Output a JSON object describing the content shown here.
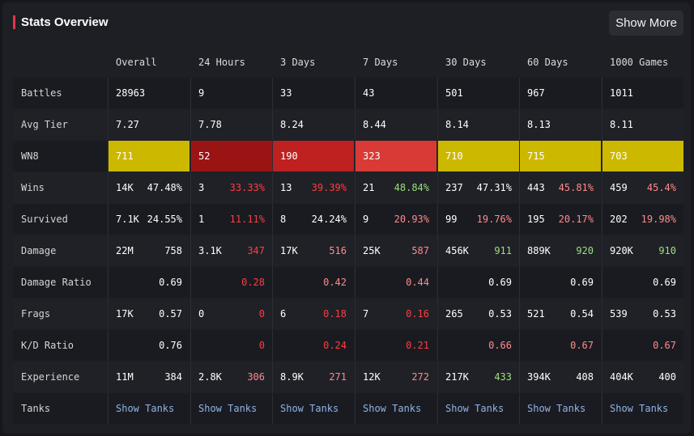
{
  "header": {
    "title": "Stats Overview",
    "button_label": "Show More"
  },
  "columns": [
    "Overall",
    "24 Hours",
    "3 Days",
    "7 Days",
    "30 Days",
    "60 Days",
    "1000 Games"
  ],
  "colors": {
    "accent": "#e0364a",
    "good": "#9be07a",
    "bad": "#ff3d3d",
    "mid_bad": "#ff8a8a",
    "neutral": "#ffffff",
    "wn8_yellow": "#cdb800",
    "wn8_dark_red": "#9a1414",
    "wn8_red": "#bf2020",
    "wn8_light_red": "#d93a36",
    "link": "#8fb4e6"
  },
  "rows": [
    {
      "label": "Battles",
      "cells": [
        {
          "a": "28963"
        },
        {
          "a": "9"
        },
        {
          "a": "33"
        },
        {
          "a": "43"
        },
        {
          "a": "501"
        },
        {
          "a": "967"
        },
        {
          "a": "1011"
        }
      ]
    },
    {
      "label": "Avg Tier",
      "cells": [
        {
          "a": "7.27"
        },
        {
          "a": "7.78"
        },
        {
          "a": "8.24"
        },
        {
          "a": "8.44"
        },
        {
          "a": "8.14"
        },
        {
          "a": "8.13"
        },
        {
          "a": "8.11"
        }
      ]
    },
    {
      "label": "WN8",
      "cells": [
        {
          "a": "711",
          "bg": "#cdb800"
        },
        {
          "a": "52",
          "bg": "#9a1414"
        },
        {
          "a": "190",
          "bg": "#bf2020"
        },
        {
          "a": "323",
          "bg": "#d93a36"
        },
        {
          "a": "710",
          "bg": "#cdb800"
        },
        {
          "a": "715",
          "bg": "#cdb800"
        },
        {
          "a": "703",
          "bg": "#cdb800"
        }
      ]
    },
    {
      "label": "Wins",
      "cells": [
        {
          "a": "14K",
          "b": "47.48%",
          "bc": "#ffffff"
        },
        {
          "a": "3",
          "b": "33.33%",
          "bc": "#ff3d3d"
        },
        {
          "a": "13",
          "b": "39.39%",
          "bc": "#ff3d3d"
        },
        {
          "a": "21",
          "b": "48.84%",
          "bc": "#9be07a"
        },
        {
          "a": "237",
          "b": "47.31%",
          "bc": "#ffffff"
        },
        {
          "a": "443",
          "b": "45.81%",
          "bc": "#ff8a8a"
        },
        {
          "a": "459",
          "b": "45.4%",
          "bc": "#ff8a8a"
        }
      ]
    },
    {
      "label": "Survived",
      "cells": [
        {
          "a": "7.1K",
          "b": "24.55%",
          "bc": "#ffffff"
        },
        {
          "a": "1",
          "b": "11.11%",
          "bc": "#ff3d3d"
        },
        {
          "a": "8",
          "b": "24.24%",
          "bc": "#ffffff"
        },
        {
          "a": "9",
          "b": "20.93%",
          "bc": "#ff8a8a"
        },
        {
          "a": "99",
          "b": "19.76%",
          "bc": "#ff8a8a"
        },
        {
          "a": "195",
          "b": "20.17%",
          "bc": "#ff8a8a"
        },
        {
          "a": "202",
          "b": "19.98%",
          "bc": "#ff8a8a"
        }
      ]
    },
    {
      "label": "Damage",
      "cells": [
        {
          "a": "22M",
          "b": "758",
          "bc": "#ffffff"
        },
        {
          "a": "3.1K",
          "b": "347",
          "bc": "#ff3d3d"
        },
        {
          "a": "17K",
          "b": "516",
          "bc": "#ff8a8a"
        },
        {
          "a": "25K",
          "b": "587",
          "bc": "#ff8a8a"
        },
        {
          "a": "456K",
          "b": "911",
          "bc": "#9be07a"
        },
        {
          "a": "889K",
          "b": "920",
          "bc": "#9be07a"
        },
        {
          "a": "920K",
          "b": "910",
          "bc": "#9be07a"
        }
      ]
    },
    {
      "label": "Damage Ratio",
      "cells": [
        {
          "b": "0.69",
          "bc": "#ffffff"
        },
        {
          "b": "0.28",
          "bc": "#ff3d3d"
        },
        {
          "b": "0.42",
          "bc": "#ff8a8a"
        },
        {
          "b": "0.44",
          "bc": "#ff8a8a"
        },
        {
          "b": "0.69",
          "bc": "#ffffff"
        },
        {
          "b": "0.69",
          "bc": "#ffffff"
        },
        {
          "b": "0.69",
          "bc": "#ffffff"
        }
      ]
    },
    {
      "label": "Frags",
      "cells": [
        {
          "a": "17K",
          "b": "0.57",
          "bc": "#ffffff"
        },
        {
          "a": "0",
          "b": "0",
          "bc": "#ff3d3d"
        },
        {
          "a": "6",
          "b": "0.18",
          "bc": "#ff3d3d"
        },
        {
          "a": "7",
          "b": "0.16",
          "bc": "#ff3d3d"
        },
        {
          "a": "265",
          "b": "0.53",
          "bc": "#ffffff"
        },
        {
          "a": "521",
          "b": "0.54",
          "bc": "#ffffff"
        },
        {
          "a": "539",
          "b": "0.53",
          "bc": "#ffffff"
        }
      ]
    },
    {
      "label": "K/D Ratio",
      "cells": [
        {
          "b": "0.76",
          "bc": "#ffffff"
        },
        {
          "b": "0",
          "bc": "#ff3d3d"
        },
        {
          "b": "0.24",
          "bc": "#ff3d3d"
        },
        {
          "b": "0.21",
          "bc": "#ff3d3d"
        },
        {
          "b": "0.66",
          "bc": "#ff8a8a"
        },
        {
          "b": "0.67",
          "bc": "#ff8a8a"
        },
        {
          "b": "0.67",
          "bc": "#ff8a8a"
        }
      ]
    },
    {
      "label": "Experience",
      "cells": [
        {
          "a": "11M",
          "b": "384",
          "bc": "#ffffff"
        },
        {
          "a": "2.8K",
          "b": "306",
          "bc": "#ff8a8a"
        },
        {
          "a": "8.9K",
          "b": "271",
          "bc": "#ff8a8a"
        },
        {
          "a": "12K",
          "b": "272",
          "bc": "#ff8a8a"
        },
        {
          "a": "217K",
          "b": "433",
          "bc": "#9be07a"
        },
        {
          "a": "394K",
          "b": "408",
          "bc": "#ffffff"
        },
        {
          "a": "404K",
          "b": "400",
          "bc": "#ffffff"
        }
      ]
    },
    {
      "label": "Tanks",
      "cells": [
        {
          "a": "Show Tanks",
          "link": true
        },
        {
          "a": "Show Tanks",
          "link": true
        },
        {
          "a": "Show Tanks",
          "link": true
        },
        {
          "a": "Show Tanks",
          "link": true
        },
        {
          "a": "Show Tanks",
          "link": true
        },
        {
          "a": "Show Tanks",
          "link": true
        },
        {
          "a": "Show Tanks",
          "link": true
        }
      ]
    }
  ]
}
